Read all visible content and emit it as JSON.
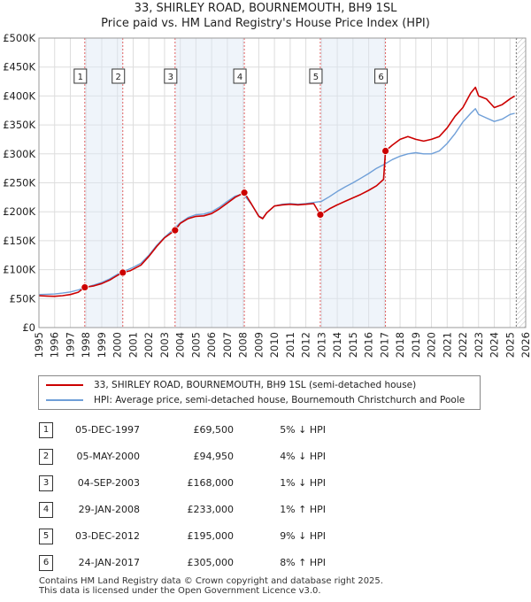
{
  "title_line1": "33, SHIRLEY ROAD, BOURNEMOUTH, BH9 1SL",
  "title_line2": "Price paid vs. HM Land Registry's House Price Index (HPI)",
  "chart_data": {
    "type": "line",
    "title": "33, SHIRLEY ROAD, BOURNEMOUTH, BH9 1SL — Price paid vs. HM Land Registry's House Price Index (HPI)",
    "xlim": [
      1995,
      2026
    ],
    "ylim": [
      0,
      500000
    ],
    "y_ticks": [
      0,
      50000,
      100000,
      150000,
      200000,
      250000,
      300000,
      350000,
      400000,
      450000,
      500000
    ],
    "y_tick_labels": [
      "£0",
      "£50K",
      "£100K",
      "£150K",
      "£200K",
      "£250K",
      "£300K",
      "£350K",
      "£400K",
      "£450K",
      "£500K"
    ],
    "x_ticks": [
      1995,
      1996,
      1997,
      1998,
      1999,
      2000,
      2001,
      2002,
      2003,
      2004,
      2005,
      2006,
      2007,
      2008,
      2009,
      2010,
      2011,
      2012,
      2013,
      2014,
      2015,
      2016,
      2017,
      2018,
      2019,
      2020,
      2021,
      2022,
      2023,
      2024,
      2025,
      2026
    ],
    "x_tick_labels": [
      "1995",
      "1996",
      "1997",
      "1998",
      "1999",
      "2000",
      "2001",
      "2002",
      "2003",
      "2004",
      "2005",
      "2006",
      "2007",
      "2008",
      "2009",
      "2010",
      "2011",
      "2012",
      "2013",
      "2014",
      "2015",
      "2016",
      "2017",
      "2018",
      "2019",
      "2020",
      "2021",
      "2022",
      "2023",
      "2024",
      "2025",
      "2026"
    ],
    "grid": true,
    "data_end_year": 2025.4,
    "series": [
      {
        "name": "33, SHIRLEY ROAD, BOURNEMOUTH, BH9 1SL (semi-detached house)",
        "color": "#cc0000",
        "x": [
          1995.0,
          1995.5,
          1996.0,
          1996.5,
          1997.0,
          1997.5,
          1997.92,
          1998.5,
          1999.0,
          1999.5,
          2000.0,
          2000.34,
          2000.8,
          2001.5,
          2002.0,
          2002.5,
          2003.0,
          2003.67,
          2004.0,
          2004.5,
          2005.0,
          2005.5,
          2006.0,
          2006.5,
          2007.0,
          2007.5,
          2008.08,
          2008.5,
          2009.0,
          2009.25,
          2009.5,
          2010.0,
          2010.5,
          2011.0,
          2011.5,
          2012.0,
          2012.5,
          2012.92,
          2013.5,
          2014.0,
          2014.5,
          2015.0,
          2015.5,
          2016.0,
          2016.5,
          2016.95,
          2017.07,
          2017.5,
          2018.0,
          2018.5,
          2019.0,
          2019.5,
          2020.0,
          2020.5,
          2021.0,
          2021.5,
          2022.0,
          2022.5,
          2022.8,
          2023.0,
          2023.5,
          2024.0,
          2024.5,
          2025.0,
          2025.3
        ],
        "y": [
          55000,
          54500,
          54000,
          55000,
          57000,
          61000,
          69500,
          72000,
          76000,
          82000,
          90000,
          94950,
          98000,
          108000,
          123000,
          140000,
          155000,
          168000,
          180000,
          188000,
          192000,
          193000,
          197000,
          205000,
          215000,
          225000,
          233000,
          215000,
          192000,
          188000,
          198000,
          210000,
          212000,
          213000,
          212000,
          213000,
          214000,
          195000,
          205000,
          212000,
          218000,
          224000,
          230000,
          237000,
          245000,
          256000,
          305000,
          315000,
          325000,
          330000,
          325000,
          322000,
          325000,
          330000,
          345000,
          365000,
          380000,
          405000,
          415000,
          400000,
          395000,
          380000,
          385000,
          395000,
          400000
        ]
      },
      {
        "name": "HPI: Average price, semi-detached house, Bournemouth Christchurch and Poole",
        "color": "#6f9fd8",
        "x": [
          1995.0,
          1995.5,
          1996.0,
          1996.5,
          1997.0,
          1997.5,
          1998.0,
          1998.5,
          1999.0,
          1999.5,
          2000.0,
          2000.5,
          2001.0,
          2001.5,
          2002.0,
          2002.5,
          2003.0,
          2003.5,
          2004.0,
          2004.5,
          2005.0,
          2005.5,
          2006.0,
          2006.5,
          2007.0,
          2007.5,
          2008.0,
          2008.5,
          2009.0,
          2009.25,
          2009.5,
          2010.0,
          2010.5,
          2011.0,
          2011.5,
          2012.0,
          2012.5,
          2013.0,
          2013.5,
          2014.0,
          2014.5,
          2015.0,
          2015.5,
          2016.0,
          2016.5,
          2017.0,
          2017.5,
          2018.0,
          2018.5,
          2019.0,
          2019.5,
          2020.0,
          2020.5,
          2021.0,
          2021.5,
          2022.0,
          2022.5,
          2022.8,
          2023.0,
          2023.5,
          2024.0,
          2024.5,
          2025.0,
          2025.3
        ],
        "y": [
          57000,
          57500,
          58000,
          59500,
          61500,
          65000,
          69500,
          73500,
          78000,
          84000,
          92000,
          98000,
          104000,
          111000,
          125000,
          142000,
          156000,
          168000,
          181000,
          190000,
          195000,
          196000,
          200000,
          208000,
          218000,
          227000,
          231000,
          214000,
          193000,
          189000,
          198000,
          210000,
          213000,
          214000,
          213000,
          214000,
          216000,
          218000,
          226000,
          235000,
          243000,
          250000,
          258000,
          266000,
          275000,
          282000,
          290000,
          296000,
          300000,
          302000,
          300000,
          300000,
          305000,
          318000,
          335000,
          355000,
          370000,
          378000,
          368000,
          362000,
          356000,
          360000,
          368000,
          370000
        ]
      }
    ],
    "sales": [
      {
        "num": "1",
        "x": 1997.92,
        "y": 69500
      },
      {
        "num": "2",
        "x": 2000.34,
        "y": 94950
      },
      {
        "num": "3",
        "x": 2003.67,
        "y": 168000
      },
      {
        "num": "4",
        "x": 2008.08,
        "y": 233000
      },
      {
        "num": "5",
        "x": 2012.92,
        "y": 195000
      },
      {
        "num": "6",
        "x": 2017.07,
        "y": 305000
      }
    ]
  },
  "legend": {
    "property": "33, SHIRLEY ROAD, BOURNEMOUTH, BH9 1SL (semi-detached house)",
    "hpi": "HPI: Average price, semi-detached house, Bournemouth Christchurch and Poole"
  },
  "sales_table": [
    {
      "num": "1",
      "date": "05-DEC-1997",
      "price": "£69,500",
      "hpi": "5% ↓ HPI"
    },
    {
      "num": "2",
      "date": "05-MAY-2000",
      "price": "£94,950",
      "hpi": "4% ↓ HPI"
    },
    {
      "num": "3",
      "date": "04-SEP-2003",
      "price": "£168,000",
      "hpi": "1% ↓ HPI"
    },
    {
      "num": "4",
      "date": "29-JAN-2008",
      "price": "£233,000",
      "hpi": "1% ↑ HPI"
    },
    {
      "num": "5",
      "date": "03-DEC-2012",
      "price": "£195,000",
      "hpi": "9% ↓ HPI"
    },
    {
      "num": "6",
      "date": "24-JAN-2017",
      "price": "£305,000",
      "hpi": "8% ↑ HPI"
    }
  ],
  "footer_line1": "Contains HM Land Registry data © Crown copyright and database right 2025.",
  "footer_line2": "This data is licensed under the Open Government Licence v3.0."
}
